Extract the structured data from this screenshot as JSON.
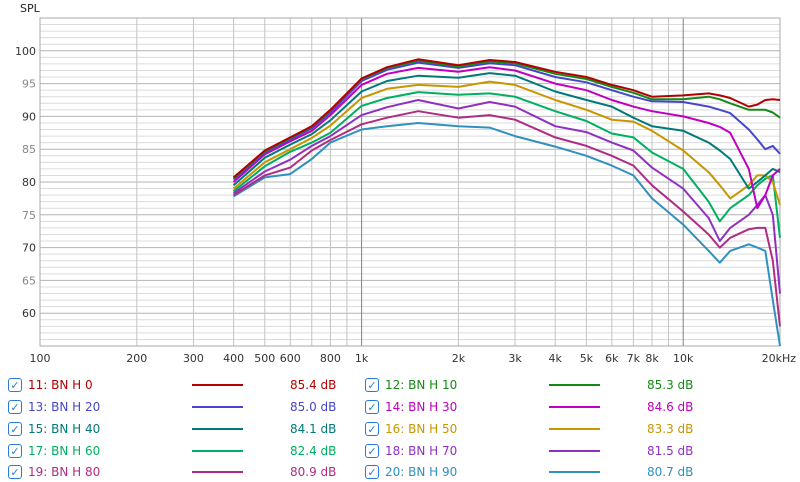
{
  "chart_data": {
    "type": "line",
    "title": "",
    "ylabel": "SPL",
    "xlabel": "",
    "xscale": "log",
    "xlim": [
      100,
      20000
    ],
    "ylim": [
      55,
      105
    ],
    "grid": true,
    "legend_placement": "bottom",
    "x_ticks": [
      {
        "v": 100,
        "label": "100"
      },
      {
        "v": 200,
        "label": "200"
      },
      {
        "v": 300,
        "label": "300"
      },
      {
        "v": 400,
        "label": "400"
      },
      {
        "v": 500,
        "label": "500"
      },
      {
        "v": 600,
        "label": "600"
      },
      {
        "v": 800,
        "label": "800"
      },
      {
        "v": 1000,
        "label": "1k"
      },
      {
        "v": 2000,
        "label": "2k"
      },
      {
        "v": 3000,
        "label": "3k"
      },
      {
        "v": 4000,
        "label": "4k"
      },
      {
        "v": 5000,
        "label": "5k"
      },
      {
        "v": 6000,
        "label": "6k"
      },
      {
        "v": 7000,
        "label": "7k"
      },
      {
        "v": 8000,
        "label": "8k"
      },
      {
        "v": 10000,
        "label": "10k"
      },
      {
        "v": 20000,
        "label": "20kHz"
      }
    ],
    "y_ticks": [
      {
        "v": 100,
        "label": "100"
      },
      {
        "v": 95,
        "label": "95"
      },
      {
        "v": 90,
        "label": "90"
      },
      {
        "v": 85,
        "label": "85"
      },
      {
        "v": 80,
        "label": "80"
      },
      {
        "v": 75,
        "label": "75"
      },
      {
        "v": 70,
        "label": "70"
      },
      {
        "v": 65,
        "label": "65"
      },
      {
        "v": 60,
        "label": "60"
      }
    ],
    "x": [
      400,
      500,
      600,
      700,
      800,
      1000,
      1200,
      1500,
      2000,
      2500,
      3000,
      4000,
      5000,
      6000,
      7000,
      8000,
      10000,
      12000,
      13000,
      14000,
      16000,
      17000,
      18000,
      19000,
      20000
    ],
    "series": [
      {
        "name": "11: BN H 0",
        "value": "85.4 dB",
        "color": "#b40000",
        "values": [
          80.7,
          84.8,
          86.8,
          88.5,
          91,
          95.8,
          97.5,
          98.7,
          97.8,
          98.6,
          98.3,
          96.8,
          96,
          94.8,
          94,
          93,
          93.2,
          93.5,
          93.2,
          92.8,
          91.5,
          91.8,
          92.5,
          92.6,
          92.5
        ]
      },
      {
        "name": "12: BN H 10",
        "value": "85.3 dB",
        "color": "#148a14",
        "values": [
          80.6,
          84.7,
          86.7,
          88.4,
          90.9,
          95.7,
          97.4,
          98.5,
          97.6,
          98.4,
          98.1,
          96.5,
          95.7,
          94.5,
          93.6,
          92.6,
          92.6,
          93,
          92.6,
          92,
          91,
          91,
          91,
          90.6,
          89.8
        ]
      },
      {
        "name": "13: BN H 20",
        "value": "85.0 dB",
        "color": "#4646cc",
        "values": [
          80.4,
          84.5,
          86.5,
          88.2,
          90.6,
          95.4,
          97.1,
          98.2,
          97.4,
          98.1,
          97.8,
          96,
          95.2,
          94,
          93,
          92.3,
          92.2,
          91.5,
          91,
          90.5,
          88,
          86.5,
          85,
          85.5,
          84.3
        ]
      },
      {
        "name": "14: BN H 30",
        "value": "84.6 dB",
        "color": "#c000c0",
        "values": [
          80,
          84.2,
          86.2,
          87.8,
          90.2,
          94.8,
          96.5,
          97.4,
          96.8,
          97.5,
          97,
          95,
          94,
          92.5,
          91.5,
          90.8,
          90,
          89,
          88.4,
          87.5,
          82,
          76,
          78,
          81,
          82
        ]
      },
      {
        "name": "15: BN H 40",
        "value": "84.1 dB",
        "color": "#007a78",
        "values": [
          79.5,
          83.7,
          85.7,
          87.3,
          89.4,
          93.8,
          95.4,
          96.2,
          95.9,
          96.6,
          96.2,
          93.8,
          92.5,
          91.5,
          89.8,
          88.5,
          87.8,
          86,
          84.8,
          83.5,
          79,
          80,
          81,
          82,
          81.5
        ]
      },
      {
        "name": "16: BN H 50",
        "value": "83.3 dB",
        "color": "#c89600",
        "values": [
          79,
          83,
          85,
          86.7,
          88.6,
          92.8,
          94.2,
          94.8,
          94.5,
          95.3,
          94.8,
          92.5,
          91,
          89.5,
          89.2,
          87.8,
          84.8,
          81.5,
          79.5,
          77.5,
          79.5,
          81,
          81,
          80,
          76.5
        ]
      },
      {
        "name": "17: BN H 60",
        "value": "82.4 dB",
        "color": "#00b060",
        "values": [
          78.6,
          82.4,
          84.6,
          86,
          87.5,
          91.6,
          92.8,
          93.7,
          93.3,
          93.5,
          93,
          90.8,
          89.3,
          87.4,
          86.8,
          84.5,
          82,
          77,
          74,
          76,
          78,
          79.5,
          80.5,
          81,
          71.5
        ]
      },
      {
        "name": "18: BN H 70",
        "value": "81.5 dB",
        "color": "#9030c0",
        "values": [
          78.3,
          81.6,
          83.4,
          85.5,
          87,
          90.2,
          91.4,
          92.5,
          91.2,
          92.2,
          91.5,
          88.5,
          87.6,
          86,
          84.8,
          82.2,
          79,
          74.5,
          71,
          73,
          75,
          76.5,
          78,
          75,
          63
        ]
      },
      {
        "name": "19: BN H 80",
        "value": "80.9 dB",
        "color": "#b02c84",
        "values": [
          78,
          81,
          82.2,
          84.8,
          86.4,
          88.8,
          89.8,
          90.8,
          89.8,
          90.2,
          89.5,
          86.8,
          85.5,
          84,
          82.5,
          79.5,
          75.5,
          72,
          70,
          71.5,
          72.8,
          73,
          73,
          68,
          58
        ]
      },
      {
        "name": "20: BN H 90",
        "value": "80.7 dB",
        "color": "#3090c0",
        "values": [
          77.8,
          80.7,
          81.2,
          83.5,
          86,
          88,
          88.5,
          89,
          88.5,
          88.3,
          87,
          85.4,
          84,
          82.5,
          81,
          77.5,
          73.5,
          69.5,
          67.7,
          69.5,
          70.5,
          70,
          69.5,
          62,
          55
        ]
      }
    ]
  }
}
